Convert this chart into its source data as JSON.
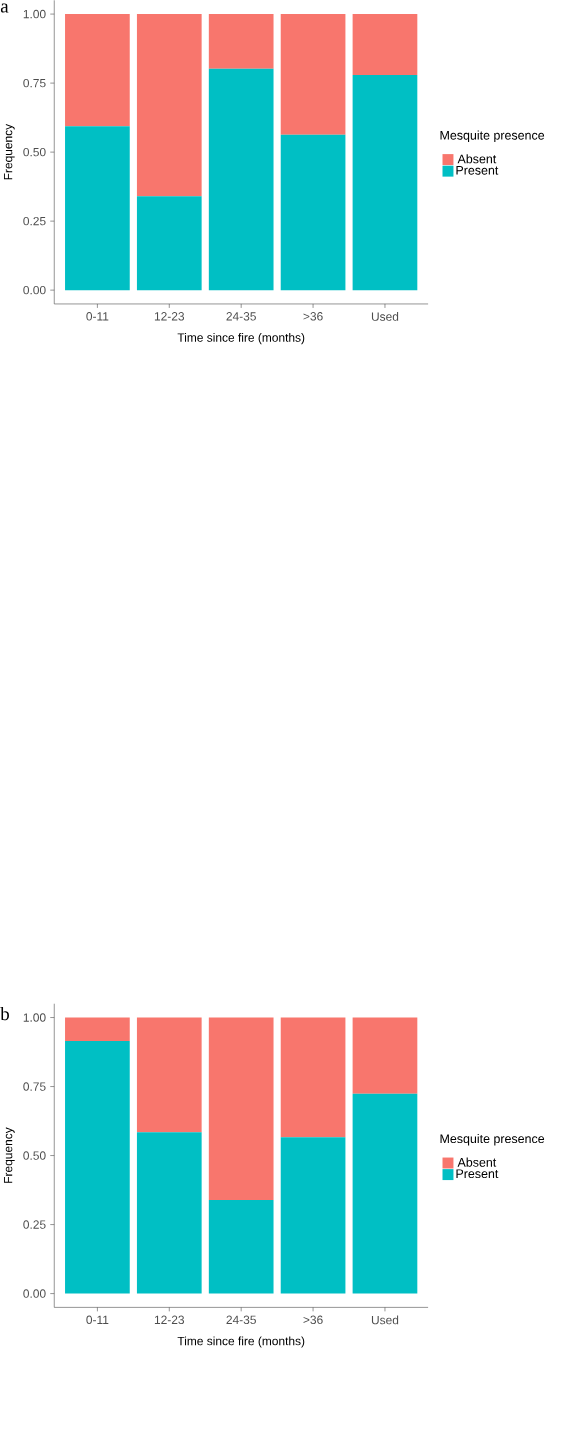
{
  "chart_data": [
    {
      "type": "bar",
      "stacked": true,
      "xlabel": "Time since fire (months)",
      "ylabel": "Frequency",
      "legend_title": "Mesquite presence",
      "legend": "right",
      "annotations": [
        "a"
      ],
      "categories": [
        "0-11",
        "12-23",
        "24-35",
        ">36",
        "Used"
      ],
      "series": [
        {
          "name": "Present",
          "color": "#00bfc4",
          "values": [
            0.594,
            0.34,
            0.802,
            0.563,
            0.779
          ]
        },
        {
          "name": "Absent",
          "color": "#f8766d",
          "values": [
            0.406,
            0.66,
            0.198,
            0.437,
            0.221
          ]
        }
      ],
      "ylim": [
        -0.05,
        1.05
      ],
      "yticks": [
        {
          "value": 0,
          "label": "0.00"
        },
        {
          "value": 0.25,
          "label": "0.25"
        },
        {
          "value": 0.5,
          "label": "0.50"
        },
        {
          "value": 0.75,
          "label": "0.75"
        },
        {
          "value": 1,
          "label": "1.00"
        }
      ]
    },
    {
      "type": "bar",
      "stacked": true,
      "xlabel": "Time since fire (months)",
      "ylabel": "Frequency",
      "legend_title": "Mesquite presence",
      "legend": "right",
      "annotations": [
        "b"
      ],
      "categories": [
        "0-11",
        "12-23",
        "24-35",
        ">36",
        "Used"
      ],
      "series": [
        {
          "name": "Present",
          "color": "#00bfc4",
          "values": [
            0.915,
            0.584,
            0.339,
            0.566,
            0.724
          ]
        },
        {
          "name": "Absent",
          "color": "#f8766d",
          "values": [
            0.085,
            0.416,
            0.661,
            0.434,
            0.276
          ]
        }
      ],
      "ylim": [
        -0.05,
        1.05
      ],
      "yticks": [
        {
          "value": 0,
          "label": "0.00"
        },
        {
          "value": 0.25,
          "label": "0.25"
        },
        {
          "value": 0.5,
          "label": "0.50"
        },
        {
          "value": 0.75,
          "label": "0.75"
        },
        {
          "value": 1,
          "label": "1.00"
        }
      ]
    }
  ]
}
